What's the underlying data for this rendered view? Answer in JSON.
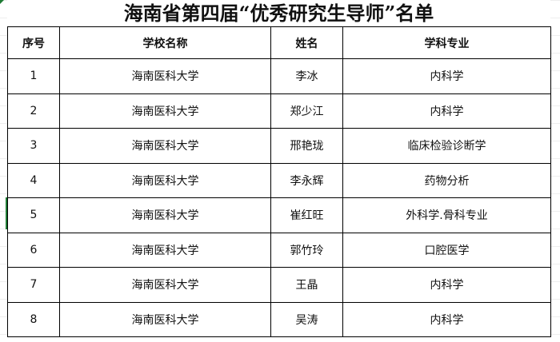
{
  "title": "海南省第四届“优秀研究生导师”名单",
  "headers": [
    "序号",
    "学校名称",
    "姓名",
    "学科专业"
  ],
  "rows": [
    [
      "1",
      "海南医科大学",
      "李冰",
      "内科学"
    ],
    [
      "2",
      "海南医科大学",
      "郑少江",
      "内科学"
    ],
    [
      "3",
      "海南医科大学",
      "邢艳珑",
      "临床检验诊断学"
    ],
    [
      "4",
      "海南医科大学",
      "李永辉",
      "药物分析"
    ],
    [
      "5",
      "海南医科大学",
      "崔红旺",
      "外科学.骨科专业"
    ],
    [
      "6",
      "海南医科大学",
      "郭竹玲",
      "口腔医学"
    ],
    [
      "7",
      "海南医科大学",
      "王晶",
      "内科学"
    ],
    [
      "8",
      "海南医科大学",
      "吴涛",
      "内科学"
    ]
  ]
}
